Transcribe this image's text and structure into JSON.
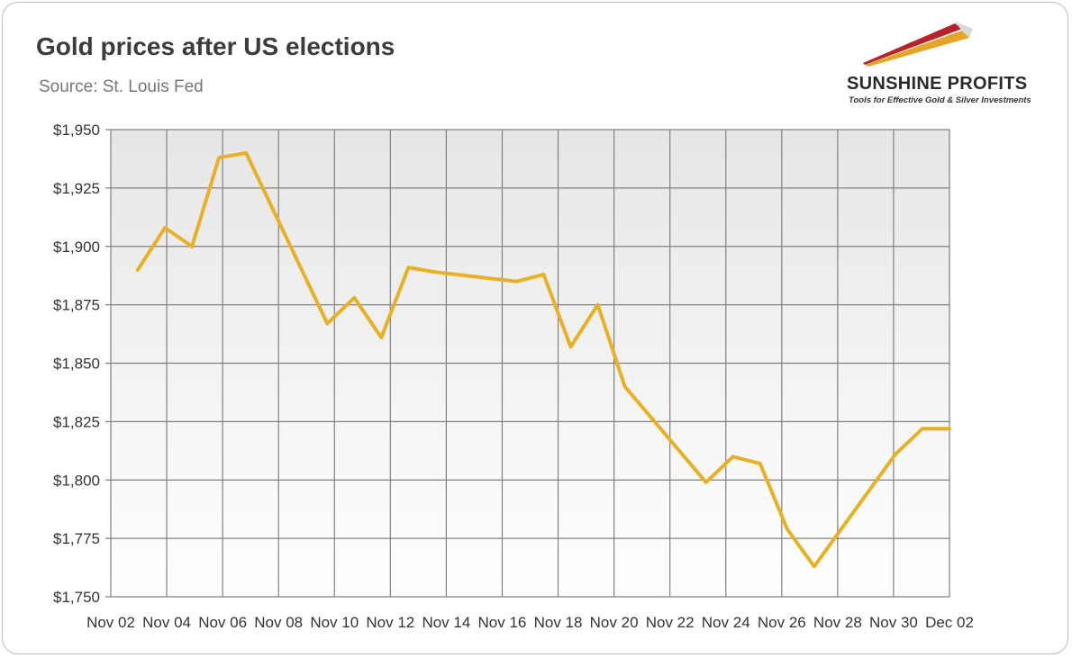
{
  "header": {
    "title": "Gold prices after US elections",
    "subtitle": "Source: St. Louis Fed"
  },
  "logo": {
    "name": "SUNSHINE PROFITS",
    "tagline": "Tools for Effective Gold & Silver Investments",
    "colors": [
      "#b8222a",
      "#e3a52a",
      "#c9c9c9"
    ]
  },
  "colors": {
    "line": "#E8B025",
    "grid": "#808080",
    "axis_text": "#333333",
    "plot_bg_top": "#e6e6e6",
    "plot_bg_bottom": "#ffffff"
  },
  "chart_data": {
    "type": "line",
    "title": "Gold prices after US elections",
    "subtitle": "Source: St. Louis Fed",
    "xlabel": "",
    "ylabel": "",
    "ylim": [
      1750,
      1950
    ],
    "yticks": [
      1750,
      1775,
      1800,
      1825,
      1850,
      1875,
      1900,
      1925,
      1950
    ],
    "ytick_labels": [
      "$1,750",
      "$1,775",
      "$1,800",
      "$1,825",
      "$1,850",
      "$1,875",
      "$1,900",
      "$1,925",
      "$1,950"
    ],
    "xtick_labels": [
      "Nov 02",
      "Nov 04",
      "Nov 06",
      "Nov 08",
      "Nov 10",
      "Nov 12",
      "Nov 14",
      "Nov 16",
      "Nov 18",
      "Nov 20",
      "Nov 22",
      "Nov 24",
      "Nov 26",
      "Nov 28",
      "Nov 30",
      "Dec 02"
    ],
    "grid": true,
    "legend": "none",
    "series": [
      {
        "x": [
          "2020-11-02",
          "2020-11-03",
          "2020-11-04",
          "2020-11-05",
          "2020-11-06",
          "2020-11-09",
          "2020-11-10",
          "2020-11-11",
          "2020-11-12",
          "2020-11-13",
          "2020-11-16",
          "2020-11-17",
          "2020-11-18",
          "2020-11-19",
          "2020-11-20",
          "2020-11-23",
          "2020-11-24",
          "2020-11-25",
          "2020-11-26",
          "2020-11-27",
          "2020-11-30",
          "2020-12-01",
          "2020-12-02"
        ],
        "values": [
          1890,
          1908,
          1900,
          1938,
          1940,
          1867,
          1878,
          1861,
          1891,
          1889,
          1885,
          1888,
          1857,
          1875,
          1840,
          1799,
          1810,
          1807,
          1779,
          1763,
          1811,
          1822,
          1822
        ]
      }
    ]
  }
}
